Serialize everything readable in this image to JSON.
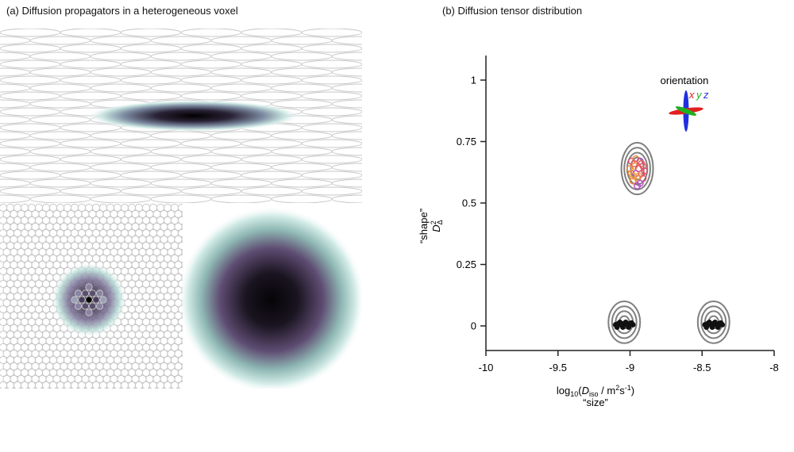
{
  "panel_a": {
    "title": "(a) Diffusion propagators in a heterogeneous voxel",
    "colors": {
      "fiber_outline": "#c8c8c8",
      "propagator_dark": "#0a0a12",
      "propagator_mid": "#5a4a6e",
      "propagator_edge": "#a8d2cc"
    }
  },
  "panel_b": {
    "title": "(b) Diffusion tensor distribution",
    "orientation_label": "orientation",
    "orientation_axes": [
      "x",
      "y",
      "z"
    ],
    "orientation_colors": {
      "x": "#e02020",
      "y": "#20b020",
      "z": "#2030e0"
    }
  },
  "chart_data": {
    "type": "scatter",
    "title": "(b) Diffusion tensor distribution",
    "xlabel": "log10(Diso / m2s-1)",
    "xlabel_parts": {
      "prefix": "log",
      "sub10": "10",
      "open": "(",
      "D": "D",
      "iso": "iso",
      "unit": " / m",
      "sq": "2",
      "s": "s",
      "neg1": "-1",
      "close": ")"
    },
    "xlabel2": "“size”",
    "ylabel": "“shape”",
    "ylabel2_parts": {
      "D": "D",
      "sub": "Δ",
      "sup": "2"
    },
    "xlim": [
      -10,
      -8
    ],
    "ylim": [
      -0.1,
      1.1
    ],
    "xticks": [
      -10,
      -9.5,
      -9,
      -8.5,
      -8
    ],
    "xtick_labels": [
      "-10",
      "-9.5",
      "-9",
      "-8.5",
      "-8"
    ],
    "yticks": [
      0,
      0.25,
      0.5,
      0.75,
      1
    ],
    "ytick_labels": [
      "0",
      "0.25",
      "0.5",
      "0.75",
      "1"
    ],
    "contours": [
      {
        "name": "anisotropic-component",
        "cx": -8.95,
        "cy": 0.64,
        "rx": [
          0.045,
          0.07,
          0.09,
          0.11
        ],
        "ry": [
          0.045,
          0.065,
          0.085,
          0.105
        ]
      },
      {
        "name": "isotropic-slow-component",
        "cx": -9.04,
        "cy": 0.015,
        "rx": [
          0.035,
          0.06,
          0.085,
          0.11
        ],
        "ry": [
          0.025,
          0.045,
          0.065,
          0.085
        ]
      },
      {
        "name": "isotropic-fast-component",
        "cx": -8.42,
        "cy": 0.015,
        "rx": [
          0.035,
          0.06,
          0.085,
          0.11
        ],
        "ry": [
          0.025,
          0.045,
          0.065,
          0.085
        ]
      }
    ],
    "series": [
      {
        "name": "anisotropic-points",
        "color": "#e04a70",
        "points": [
          [
            -8.99,
            0.67
          ],
          [
            -8.96,
            0.68
          ],
          [
            -8.93,
            0.67
          ],
          [
            -8.91,
            0.65
          ],
          [
            -8.97,
            0.65
          ],
          [
            -8.94,
            0.64
          ],
          [
            -8.99,
            0.62
          ],
          [
            -8.96,
            0.62
          ],
          [
            -8.92,
            0.62
          ],
          [
            -8.95,
            0.6
          ],
          [
            -8.91,
            0.6
          ],
          [
            -8.98,
            0.59
          ],
          [
            -8.93,
            0.58
          ],
          [
            -8.97,
            0.66
          ],
          [
            -8.94,
            0.61
          ],
          [
            -8.9,
            0.63
          ],
          [
            -9.0,
            0.64
          ],
          [
            -8.95,
            0.57
          ],
          [
            -8.92,
            0.66
          ],
          [
            -8.98,
            0.61
          ]
        ]
      },
      {
        "name": "isotropic-points-slow",
        "color": "#111111",
        "points": [
          [
            -9.1,
            0.005
          ],
          [
            -9.08,
            0.01
          ],
          [
            -9.06,
            0.005
          ],
          [
            -9.04,
            0.01
          ],
          [
            -9.02,
            0.005
          ],
          [
            -9.0,
            0.01
          ],
          [
            -8.98,
            0.005
          ],
          [
            -9.09,
            -0.005
          ],
          [
            -9.05,
            -0.005
          ],
          [
            -9.01,
            -0.005
          ],
          [
            -9.07,
            0.015
          ],
          [
            -9.03,
            0.015
          ],
          [
            -8.99,
            0.012
          ]
        ]
      },
      {
        "name": "isotropic-points-fast",
        "color": "#111111",
        "points": [
          [
            -8.48,
            0.005
          ],
          [
            -8.46,
            0.01
          ],
          [
            -8.44,
            0.005
          ],
          [
            -8.42,
            0.01
          ],
          [
            -8.4,
            0.005
          ],
          [
            -8.38,
            0.01
          ],
          [
            -8.36,
            0.005
          ],
          [
            -8.47,
            -0.005
          ],
          [
            -8.43,
            -0.005
          ],
          [
            -8.39,
            -0.005
          ],
          [
            -8.45,
            0.015
          ],
          [
            -8.41,
            0.015
          ],
          [
            -8.37,
            0.012
          ]
        ]
      }
    ]
  }
}
